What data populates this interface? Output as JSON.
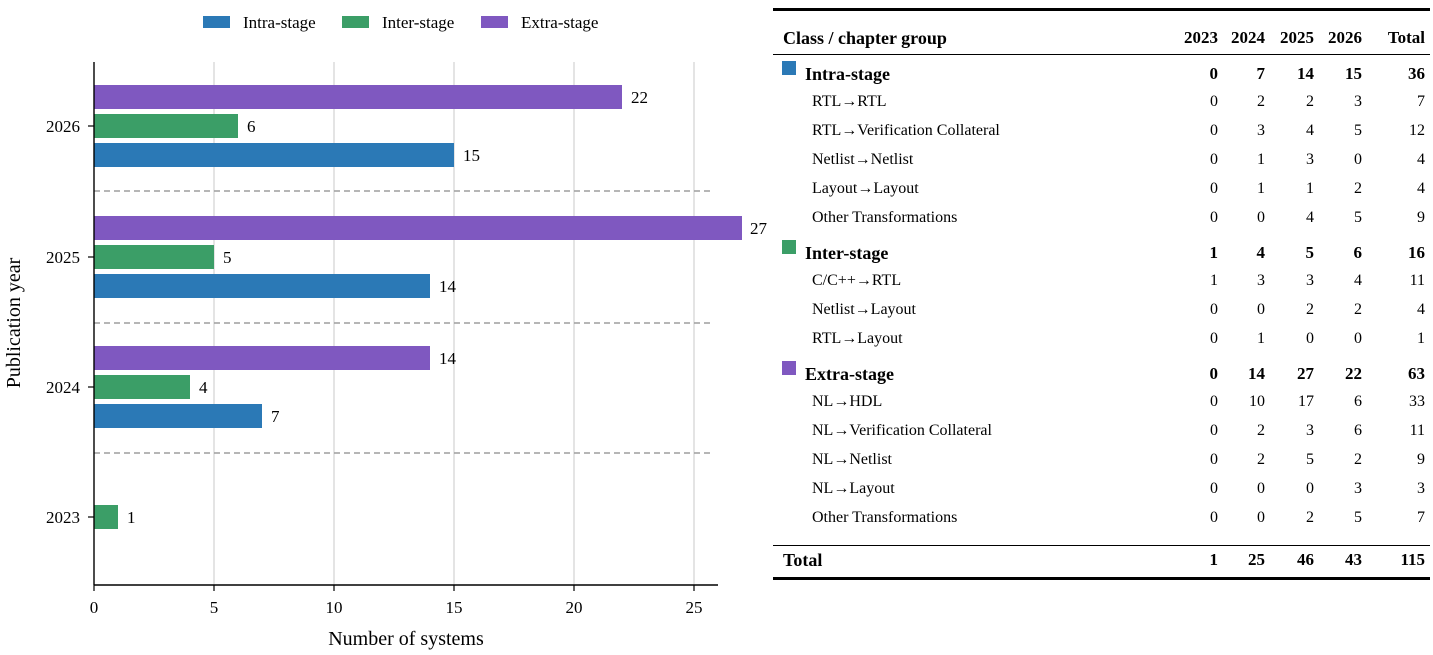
{
  "chart_data": {
    "type": "bar",
    "orientation": "horizontal",
    "xlabel": "Number of systems",
    "ylabel": "Publication year",
    "xlim": [
      0,
      26
    ],
    "xticks": [
      0,
      5,
      10,
      15,
      20,
      25
    ],
    "categories": [
      "2026",
      "2025",
      "2024",
      "2023"
    ],
    "series": [
      {
        "name": "Intra-stage",
        "color": "#2b79b6",
        "values": [
          15,
          14,
          7,
          0
        ]
      },
      {
        "name": "Inter-stage",
        "color": "#3b9e67",
        "values": [
          6,
          5,
          4,
          1
        ]
      },
      {
        "name": "Extra-stage",
        "color": "#7f58c0",
        "values": [
          22,
          27,
          14,
          0
        ]
      }
    ],
    "grid": "x",
    "legend_position": "top"
  },
  "table": {
    "header": {
      "label": "Class / chapter group",
      "cols": [
        "2023",
        "2024",
        "2025",
        "2026",
        "Total"
      ]
    },
    "groups": [
      {
        "name": "Intra-stage",
        "color": "#2b79b6",
        "values": [
          "0",
          "7",
          "14",
          "15",
          "36"
        ],
        "rows": [
          {
            "label": "RTL→RTL",
            "values": [
              "0",
              "2",
              "2",
              "3",
              "7"
            ]
          },
          {
            "label": "RTL→Verification Collateral",
            "values": [
              "0",
              "3",
              "4",
              "5",
              "12"
            ]
          },
          {
            "label": "Netlist→Netlist",
            "values": [
              "0",
              "1",
              "3",
              "0",
              "4"
            ]
          },
          {
            "label": "Layout→Layout",
            "values": [
              "0",
              "1",
              "1",
              "2",
              "4"
            ]
          },
          {
            "label": "Other Transformations",
            "values": [
              "0",
              "0",
              "4",
              "5",
              "9"
            ]
          }
        ]
      },
      {
        "name": "Inter-stage",
        "color": "#3b9e67",
        "values": [
          "1",
          "4",
          "5",
          "6",
          "16"
        ],
        "rows": [
          {
            "label": "C/C++→RTL",
            "values": [
              "1",
              "3",
              "3",
              "4",
              "11"
            ]
          },
          {
            "label": "Netlist→Layout",
            "values": [
              "0",
              "0",
              "2",
              "2",
              "4"
            ]
          },
          {
            "label": "RTL→Layout",
            "values": [
              "0",
              "1",
              "0",
              "0",
              "1"
            ]
          }
        ]
      },
      {
        "name": "Extra-stage",
        "color": "#7f58c0",
        "values": [
          "0",
          "14",
          "27",
          "22",
          "63"
        ],
        "rows": [
          {
            "label": "NL→HDL",
            "values": [
              "0",
              "10",
              "17",
              "6",
              "33"
            ]
          },
          {
            "label": "NL→Verification Collateral",
            "values": [
              "0",
              "2",
              "3",
              "6",
              "11"
            ]
          },
          {
            "label": "NL→Netlist",
            "values": [
              "0",
              "2",
              "5",
              "2",
              "9"
            ]
          },
          {
            "label": "NL→Layout",
            "values": [
              "0",
              "0",
              "0",
              "3",
              "3"
            ]
          },
          {
            "label": "Other Transformations",
            "values": [
              "0",
              "0",
              "2",
              "5",
              "7"
            ]
          }
        ]
      }
    ],
    "total": {
      "label": "Total",
      "values": [
        "1",
        "25",
        "46",
        "43",
        "115"
      ]
    }
  }
}
